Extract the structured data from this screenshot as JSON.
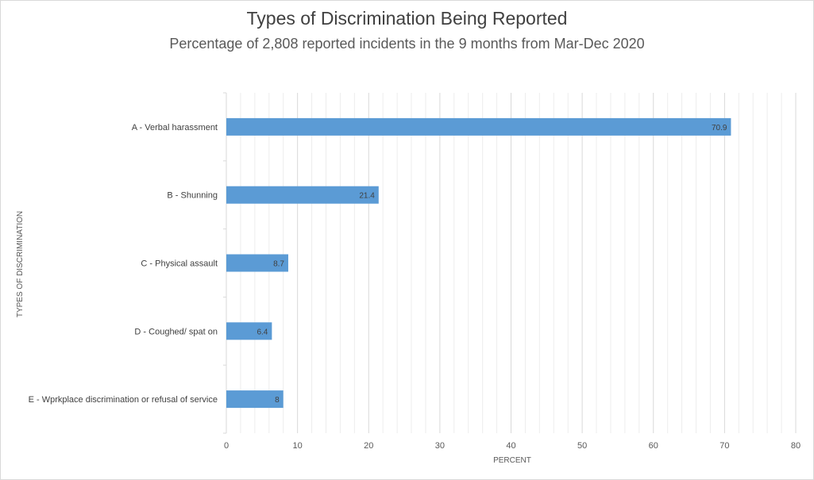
{
  "chart_data": {
    "type": "bar",
    "orientation": "horizontal",
    "title": "Types of Discrimination Being Reported",
    "subtitle": "Percentage of 2,808 reported incidents in the 9 months from Mar-Dec 2020",
    "xlabel": "PERCENT",
    "ylabel": "TYPES OF DISCRIMINATION",
    "categories": [
      "A - Verbal harassment",
      "B - Shunning",
      "C - Physical assault",
      "D - Coughed/ spat on",
      "E - Wprkplace discrimination or refusal of service"
    ],
    "values": [
      70.9,
      21.4,
      8.7,
      6.4,
      8
    ],
    "value_labels": [
      "70.9",
      "21.4",
      "8.7",
      "6.4",
      "8"
    ],
    "xlim": [
      0,
      80
    ],
    "xticks": [
      0,
      10,
      20,
      30,
      40,
      50,
      60,
      70,
      80
    ],
    "grid": true,
    "bar_color": "#5b9bd5"
  }
}
